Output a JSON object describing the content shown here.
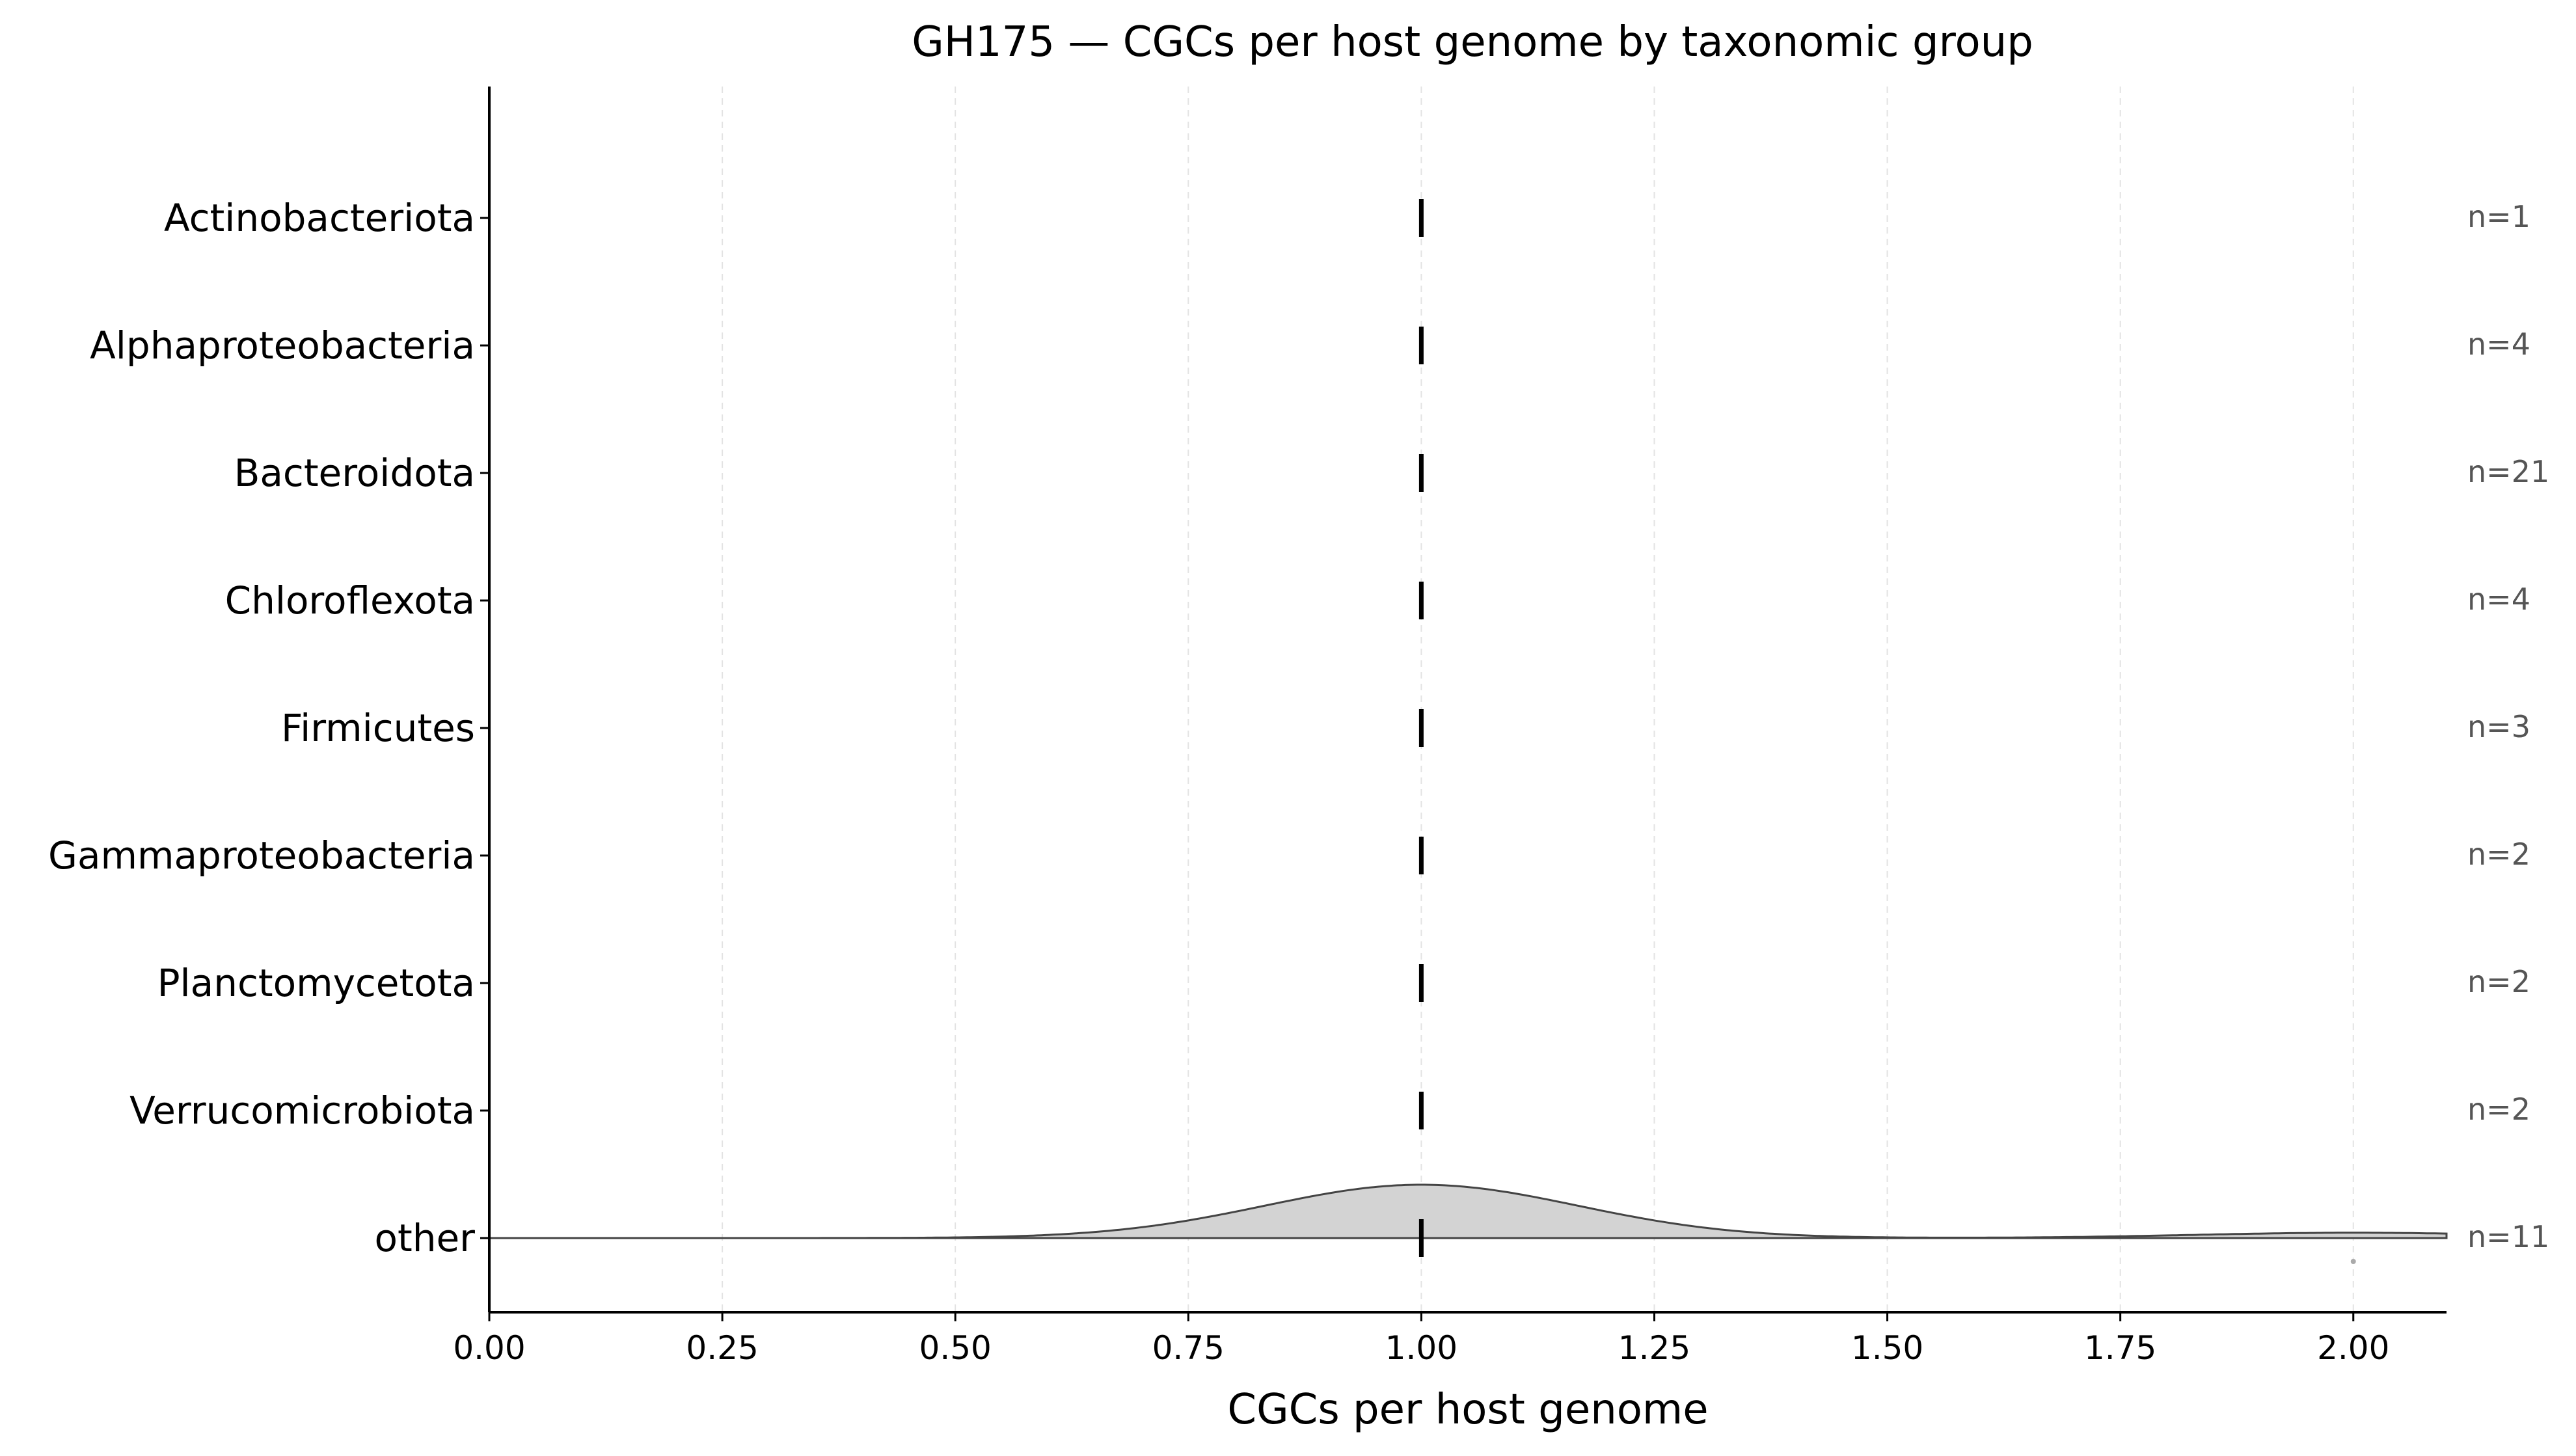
{
  "chart_data": {
    "type": "violin",
    "title": "GH175 — CGCs per host genome by taxonomic group",
    "xlabel": "CGCs per host genome",
    "ylabel": "",
    "xlim": [
      0,
      2.1
    ],
    "xticks": [
      "0.00",
      "0.25",
      "0.50",
      "0.75",
      "1.00",
      "1.25",
      "1.50",
      "1.75",
      "2.00"
    ],
    "grid": "vertical-dashed",
    "categories": [
      "Actinobacteriota",
      "Alphaproteobacteria",
      "Bacteroidota",
      "Chloroflexota",
      "Firmicutes",
      "Gammaproteobacteria",
      "Planctomycetota",
      "Verrucomicrobiota",
      "other"
    ],
    "counts": [
      "n=1",
      "n=4",
      "n=21",
      "n=4",
      "n=3",
      "n=2",
      "n=2",
      "n=2",
      "n=11"
    ],
    "medians": [
      1,
      1,
      1,
      1,
      1,
      1,
      1,
      1,
      1
    ],
    "violins": [
      {
        "category": "other",
        "values": [
          1,
          1,
          1,
          1,
          1,
          1,
          1,
          1,
          1,
          1,
          2
        ],
        "outliers": [
          2
        ]
      }
    ],
    "colors": {
      "violin_fill": "#d3d3d3",
      "violin_edge": "#444444",
      "median": "#000000",
      "grid": "#e3e3e3",
      "n_label": "#555555",
      "outlier": "#aaaaaa"
    }
  }
}
